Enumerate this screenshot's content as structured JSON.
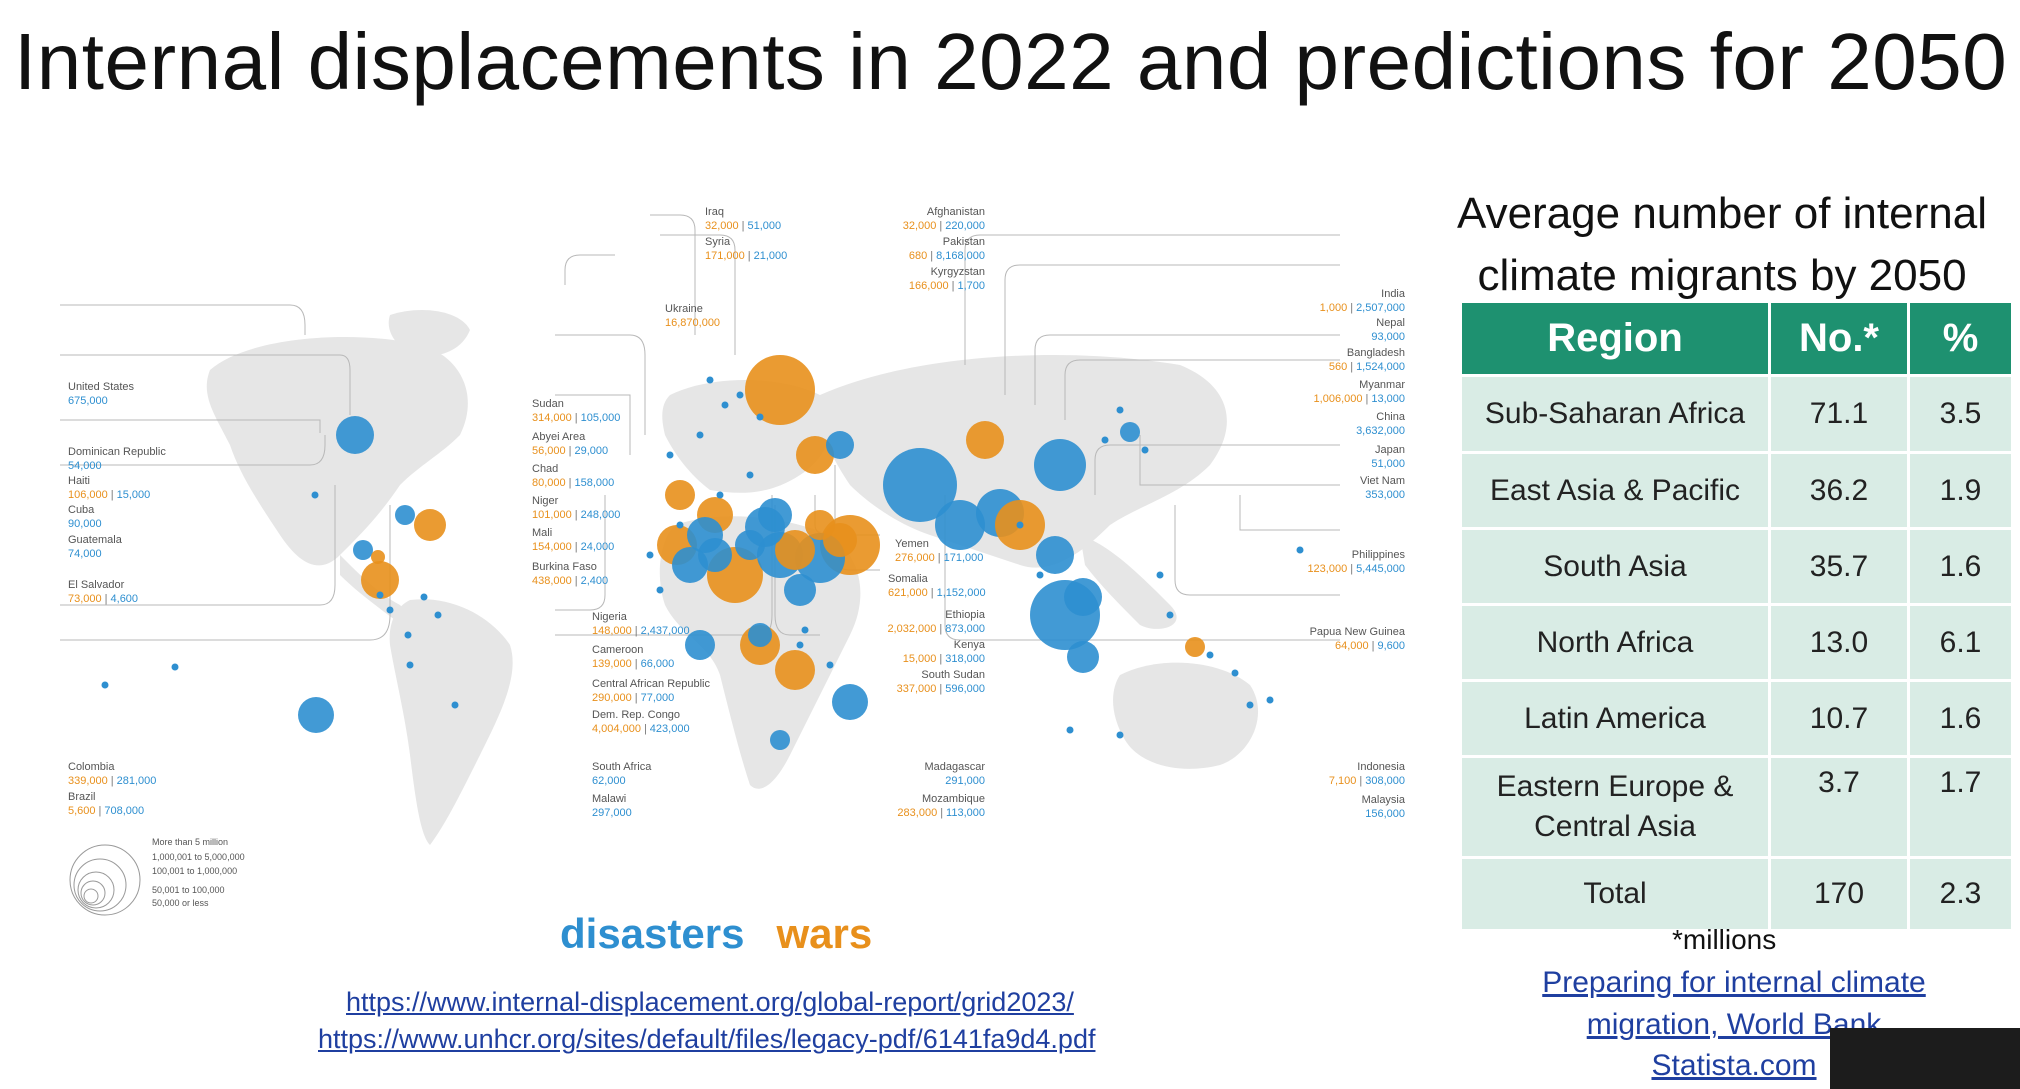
{
  "title": "Internal displacements in 2022 and predictions for 2050",
  "colors": {
    "disasters": "#2e8fd0",
    "wars": "#e8901c",
    "table_header": "#1e9170",
    "table_cell": "#d9ece5",
    "land": "#e6e6e6"
  },
  "map": {
    "labels": {
      "iraq": {
        "name": "Iraq",
        "wars": "32,000",
        "disasters": "51,000"
      },
      "syria": {
        "name": "Syria",
        "wars": "171,000",
        "disasters": "21,000"
      },
      "ukraine": {
        "name": "Ukraine",
        "wars": "16,870,000"
      },
      "afghanistan": {
        "name": "Afghanistan",
        "wars": "32,000",
        "disasters": "220,000"
      },
      "pakistan": {
        "name": "Pakistan",
        "wars": "680",
        "disasters": "8,168,000"
      },
      "kyrgyzstan": {
        "name": "Kyrgyzstan",
        "wars": "166,000",
        "disasters": "1,700"
      },
      "india": {
        "name": "India",
        "wars": "1,000",
        "disasters": "2,507,000"
      },
      "nepal": {
        "name": "Nepal",
        "disasters": "93,000"
      },
      "bangladesh": {
        "name": "Bangladesh",
        "wars": "560",
        "disasters": "1,524,000"
      },
      "myanmar": {
        "name": "Myanmar",
        "wars": "1,006,000",
        "disasters": "13,000"
      },
      "china": {
        "name": "China",
        "disasters": "3,632,000"
      },
      "japan": {
        "name": "Japan",
        "disasters": "51,000"
      },
      "vietnam": {
        "name": "Viet Nam",
        "disasters": "353,000"
      },
      "philippines": {
        "name": "Philippines",
        "wars": "123,000",
        "disasters": "5,445,000"
      },
      "png": {
        "name": "Papua New Guinea",
        "wars": "64,000",
        "disasters": "9,600"
      },
      "indonesia": {
        "name": "Indonesia",
        "wars": "7,100",
        "disasters": "308,000"
      },
      "malaysia": {
        "name": "Malaysia",
        "disasters": "156,000"
      },
      "usa": {
        "name": "United States",
        "disasters": "675,000"
      },
      "dominican": {
        "name": "Dominican Republic",
        "disasters": "54,000"
      },
      "haiti": {
        "name": "Haiti",
        "wars": "106,000",
        "disasters": "15,000"
      },
      "cuba": {
        "name": "Cuba",
        "disasters": "90,000"
      },
      "guatemala": {
        "name": "Guatemala",
        "disasters": "74,000"
      },
      "elsalvador": {
        "name": "El Salvador",
        "wars": "73,000",
        "disasters": "4,600"
      },
      "colombia": {
        "name": "Colombia",
        "wars": "339,000",
        "disasters": "281,000"
      },
      "brazil": {
        "name": "Brazil",
        "wars": "5,600",
        "disasters": "708,000"
      },
      "sudan": {
        "name": "Sudan",
        "wars": "314,000",
        "disasters": "105,000"
      },
      "abyei": {
        "name": "Abyei Area",
        "wars": "56,000",
        "disasters": "29,000"
      },
      "chad": {
        "name": "Chad",
        "wars": "80,000",
        "disasters": "158,000"
      },
      "niger": {
        "name": "Niger",
        "wars": "101,000",
        "disasters": "248,000"
      },
      "mali": {
        "name": "Mali",
        "wars": "154,000",
        "disasters": "24,000"
      },
      "burkina": {
        "name": "Burkina Faso",
        "wars": "438,000",
        "disasters": "2,400"
      },
      "nigeria": {
        "name": "Nigeria",
        "wars": "148,000",
        "disasters": "2,437,000"
      },
      "cameroon": {
        "name": "Cameroon",
        "wars": "139,000",
        "disasters": "66,000"
      },
      "car": {
        "name": "Central African Republic",
        "wars": "290,000",
        "disasters": "77,000"
      },
      "drc": {
        "name": "Dem. Rep. Congo",
        "wars": "4,004,000",
        "disasters": "423,000"
      },
      "southafrica": {
        "name": "South Africa",
        "disasters": "62,000"
      },
      "malawi": {
        "name": "Malawi",
        "disasters": "297,000"
      },
      "yemen": {
        "name": "Yemen",
        "wars": "276,000",
        "disasters": "171,000"
      },
      "somalia": {
        "name": "Somalia",
        "wars": "621,000",
        "disasters": "1,152,000"
      },
      "ethiopia": {
        "name": "Ethiopia",
        "wars": "2,032,000",
        "disasters": "873,000"
      },
      "kenya": {
        "name": "Kenya",
        "wars": "15,000",
        "disasters": "318,000"
      },
      "southsudan": {
        "name": "South Sudan",
        "wars": "337,000",
        "disasters": "596,000"
      },
      "madagascar": {
        "name": "Madagascar",
        "disasters": "291,000"
      },
      "mozambique": {
        "name": "Mozambique",
        "wars": "283,000",
        "disasters": "113,000"
      }
    },
    "size_key": [
      "More than 5 million",
      "1,000,001 to 5,000,000",
      "100,001 to 1,000,000",
      "50,001 to 100,000",
      "50,000 or less"
    ]
  },
  "legend": {
    "disasters": "disasters",
    "wars": "wars"
  },
  "sources": [
    "https://www.internal-displacement.org/global-report/grid2023/",
    "https://www.unhcr.org/sites/default/files/legacy-pdf/6141fa9d4.pdf"
  ],
  "table_title": "Average number of internal climate migrants by 2050",
  "table": {
    "headers": [
      "Region",
      "No.*",
      "%"
    ],
    "rows": [
      [
        "Sub-Saharan Africa",
        "71.1",
        "3.5"
      ],
      [
        "East Asia & Pacific",
        "36.2",
        "1.9"
      ],
      [
        "South Asia",
        "35.7",
        "1.6"
      ],
      [
        "North Africa",
        "13.0",
        "6.1"
      ],
      [
        "Latin America",
        "10.7",
        "1.6"
      ],
      [
        "Eastern Europe & Central Asia",
        "3.7",
        "1.7"
      ],
      [
        "Total",
        "170",
        "2.3"
      ]
    ]
  },
  "footnote": "*millions",
  "links": [
    "Preparing for internal climate",
    "migration, World Bank",
    "Statista.com"
  ]
}
